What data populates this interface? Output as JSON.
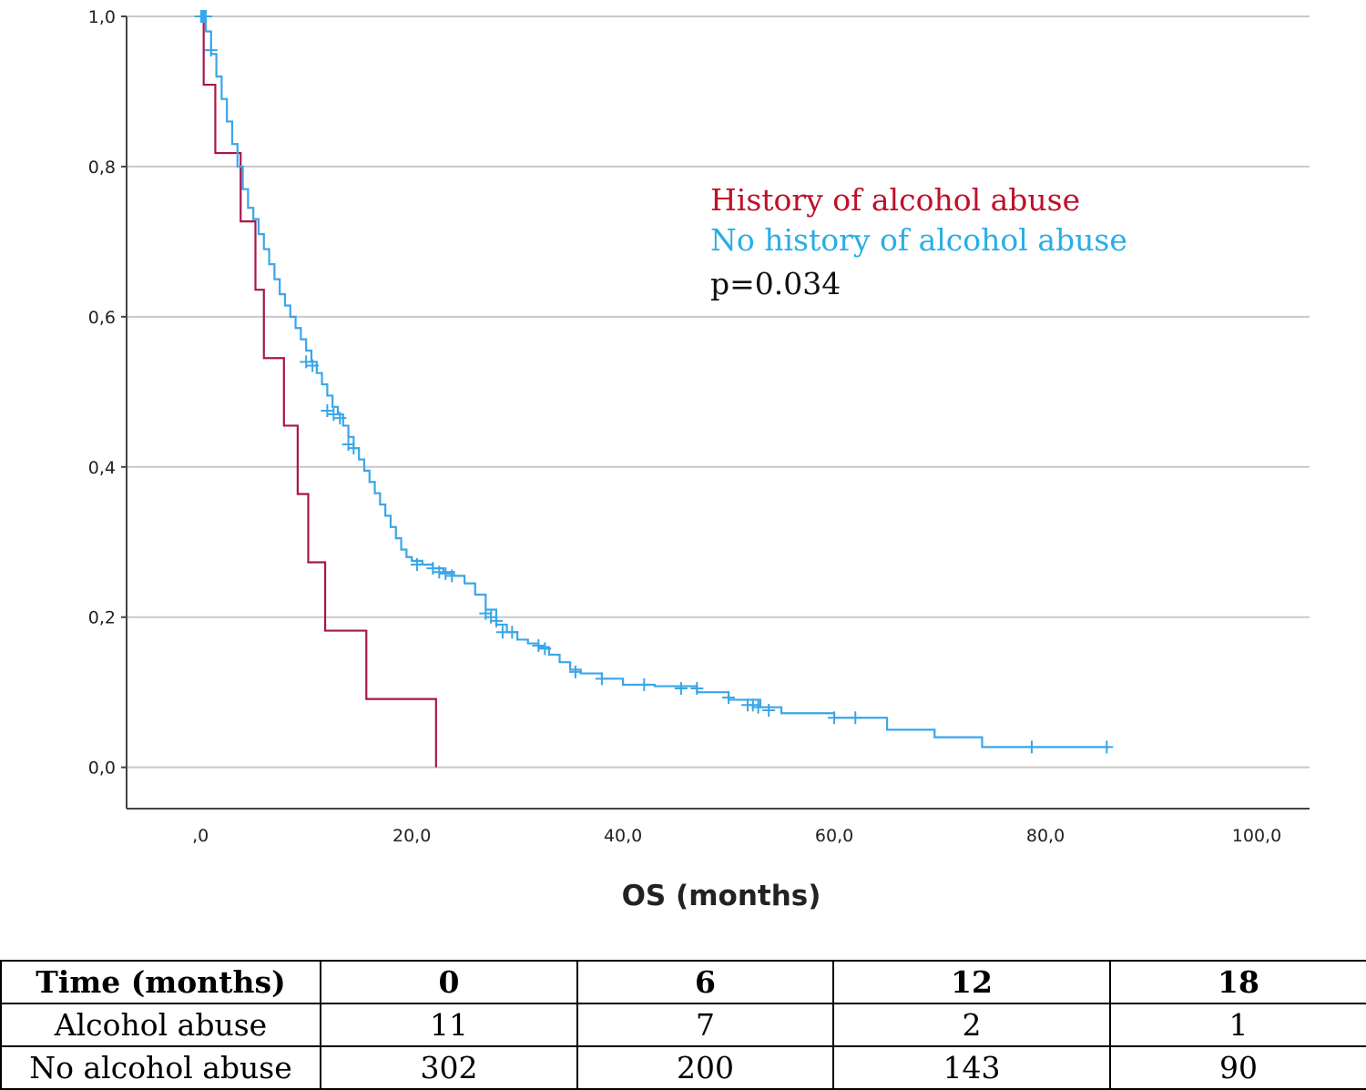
{
  "chart_data": {
    "type": "line",
    "subtype": "kaplan-meier",
    "xlabel": "OS (months)",
    "ylabel": "",
    "xlim": [
      -7,
      105
    ],
    "ylim": [
      -0.055,
      1.0
    ],
    "x_ticks": [
      0,
      20,
      40,
      60,
      80,
      100
    ],
    "x_tick_labels": [
      ",0",
      "20,0",
      "40,0",
      "60,0",
      "80,0",
      "100,0"
    ],
    "y_ticks": [
      0,
      0.2,
      0.4,
      0.6,
      0.8,
      1.0
    ],
    "y_tick_labels": [
      "0,0",
      "0,2",
      "0,4",
      "0,6",
      "0,8",
      "1,0"
    ],
    "grid": true,
    "legend_position": "upper-right",
    "annotation": "p=0.034",
    "series": [
      {
        "name": "History of alcohol abuse",
        "color": "#a8174a",
        "legend_color": "#c0102a",
        "steps": [
          [
            0,
            1.0
          ],
          [
            0.3,
            0.909
          ],
          [
            1.4,
            0.818
          ],
          [
            3.8,
            0.727
          ],
          [
            5.2,
            0.636
          ],
          [
            6.0,
            0.545
          ],
          [
            7.9,
            0.455
          ],
          [
            9.2,
            0.364
          ],
          [
            10.2,
            0.273
          ],
          [
            11.8,
            0.182
          ],
          [
            15.7,
            0.091
          ],
          [
            22.3,
            0.0
          ]
        ],
        "end_x": 22.3,
        "censored": []
      },
      {
        "name": "No history of alcohol abuse",
        "color": "#3aa6e8",
        "legend_color": "#29aee6",
        "steps": [
          [
            0,
            1.0
          ],
          [
            0.5,
            0.98
          ],
          [
            1,
            0.95
          ],
          [
            1.5,
            0.92
          ],
          [
            2,
            0.89
          ],
          [
            2.5,
            0.86
          ],
          [
            3,
            0.83
          ],
          [
            3.5,
            0.8
          ],
          [
            4,
            0.77
          ],
          [
            4.5,
            0.745
          ],
          [
            5,
            0.73
          ],
          [
            5.5,
            0.71
          ],
          [
            6,
            0.69
          ],
          [
            6.5,
            0.67
          ],
          [
            7,
            0.65
          ],
          [
            7.5,
            0.63
          ],
          [
            8,
            0.615
          ],
          [
            8.5,
            0.6
          ],
          [
            9,
            0.585
          ],
          [
            9.5,
            0.57
          ],
          [
            10,
            0.555
          ],
          [
            10.5,
            0.54
          ],
          [
            11,
            0.525
          ],
          [
            11.5,
            0.51
          ],
          [
            12,
            0.495
          ],
          [
            12.5,
            0.48
          ],
          [
            13,
            0.47
          ],
          [
            13.5,
            0.455
          ],
          [
            14,
            0.44
          ],
          [
            14.5,
            0.425
          ],
          [
            15,
            0.41
          ],
          [
            15.5,
            0.395
          ],
          [
            16,
            0.38
          ],
          [
            16.5,
            0.365
          ],
          [
            17,
            0.35
          ],
          [
            17.5,
            0.335
          ],
          [
            18,
            0.32
          ],
          [
            18.5,
            0.305
          ],
          [
            19,
            0.29
          ],
          [
            19.5,
            0.28
          ],
          [
            20,
            0.275
          ],
          [
            21,
            0.27
          ],
          [
            22,
            0.265
          ],
          [
            23,
            0.26
          ],
          [
            24,
            0.255
          ],
          [
            25,
            0.245
          ],
          [
            26,
            0.23
          ],
          [
            27,
            0.21
          ],
          [
            28,
            0.19
          ],
          [
            29,
            0.18
          ],
          [
            30,
            0.17
          ],
          [
            31,
            0.165
          ],
          [
            32,
            0.16
          ],
          [
            33,
            0.15
          ],
          [
            34,
            0.14
          ],
          [
            35,
            0.13
          ],
          [
            36,
            0.125
          ],
          [
            38,
            0.118
          ],
          [
            40,
            0.11
          ],
          [
            43,
            0.108
          ],
          [
            47,
            0.1
          ],
          [
            50,
            0.09
          ],
          [
            53,
            0.08
          ],
          [
            55,
            0.072
          ],
          [
            60,
            0.066
          ],
          [
            65,
            0.05
          ],
          [
            69.5,
            0.04
          ],
          [
            74,
            0.027
          ]
        ],
        "end_x": 86,
        "censored": [
          [
            0.05,
            1.0
          ],
          [
            0.2,
            1.0
          ],
          [
            0.35,
            1.0
          ],
          [
            0.5,
            1.0
          ],
          [
            1.0,
            0.955
          ],
          [
            10.0,
            0.54
          ],
          [
            10.6,
            0.535
          ],
          [
            12.0,
            0.475
          ],
          [
            12.6,
            0.47
          ],
          [
            13.2,
            0.465
          ],
          [
            14.0,
            0.43
          ],
          [
            14.5,
            0.425
          ],
          [
            20.5,
            0.27
          ],
          [
            22.0,
            0.265
          ],
          [
            22.6,
            0.26
          ],
          [
            23.2,
            0.258
          ],
          [
            23.8,
            0.255
          ],
          [
            27.0,
            0.205
          ],
          [
            27.5,
            0.2
          ],
          [
            28.0,
            0.195
          ],
          [
            28.6,
            0.18
          ],
          [
            29.5,
            0.18
          ],
          [
            32.0,
            0.162
          ],
          [
            32.6,
            0.158
          ],
          [
            35.5,
            0.127
          ],
          [
            38.0,
            0.118
          ],
          [
            42.0,
            0.11
          ],
          [
            45.5,
            0.105
          ],
          [
            47.0,
            0.105
          ],
          [
            50.0,
            0.093
          ],
          [
            51.8,
            0.083
          ],
          [
            52.3,
            0.083
          ],
          [
            52.8,
            0.08
          ],
          [
            53.8,
            0.076
          ],
          [
            60.0,
            0.066
          ],
          [
            62.0,
            0.066
          ],
          [
            78.7,
            0.027
          ],
          [
            85.8,
            0.027
          ]
        ]
      }
    ]
  },
  "risk_table": {
    "header": [
      "Time (months)",
      "0",
      "6",
      "12",
      "18"
    ],
    "rows": [
      {
        "label": "Alcohol abuse",
        "values": [
          "11",
          "7",
          "2",
          "1"
        ]
      },
      {
        "label": "No alcohol abuse",
        "values": [
          "302",
          "200",
          "143",
          "90"
        ]
      }
    ]
  }
}
